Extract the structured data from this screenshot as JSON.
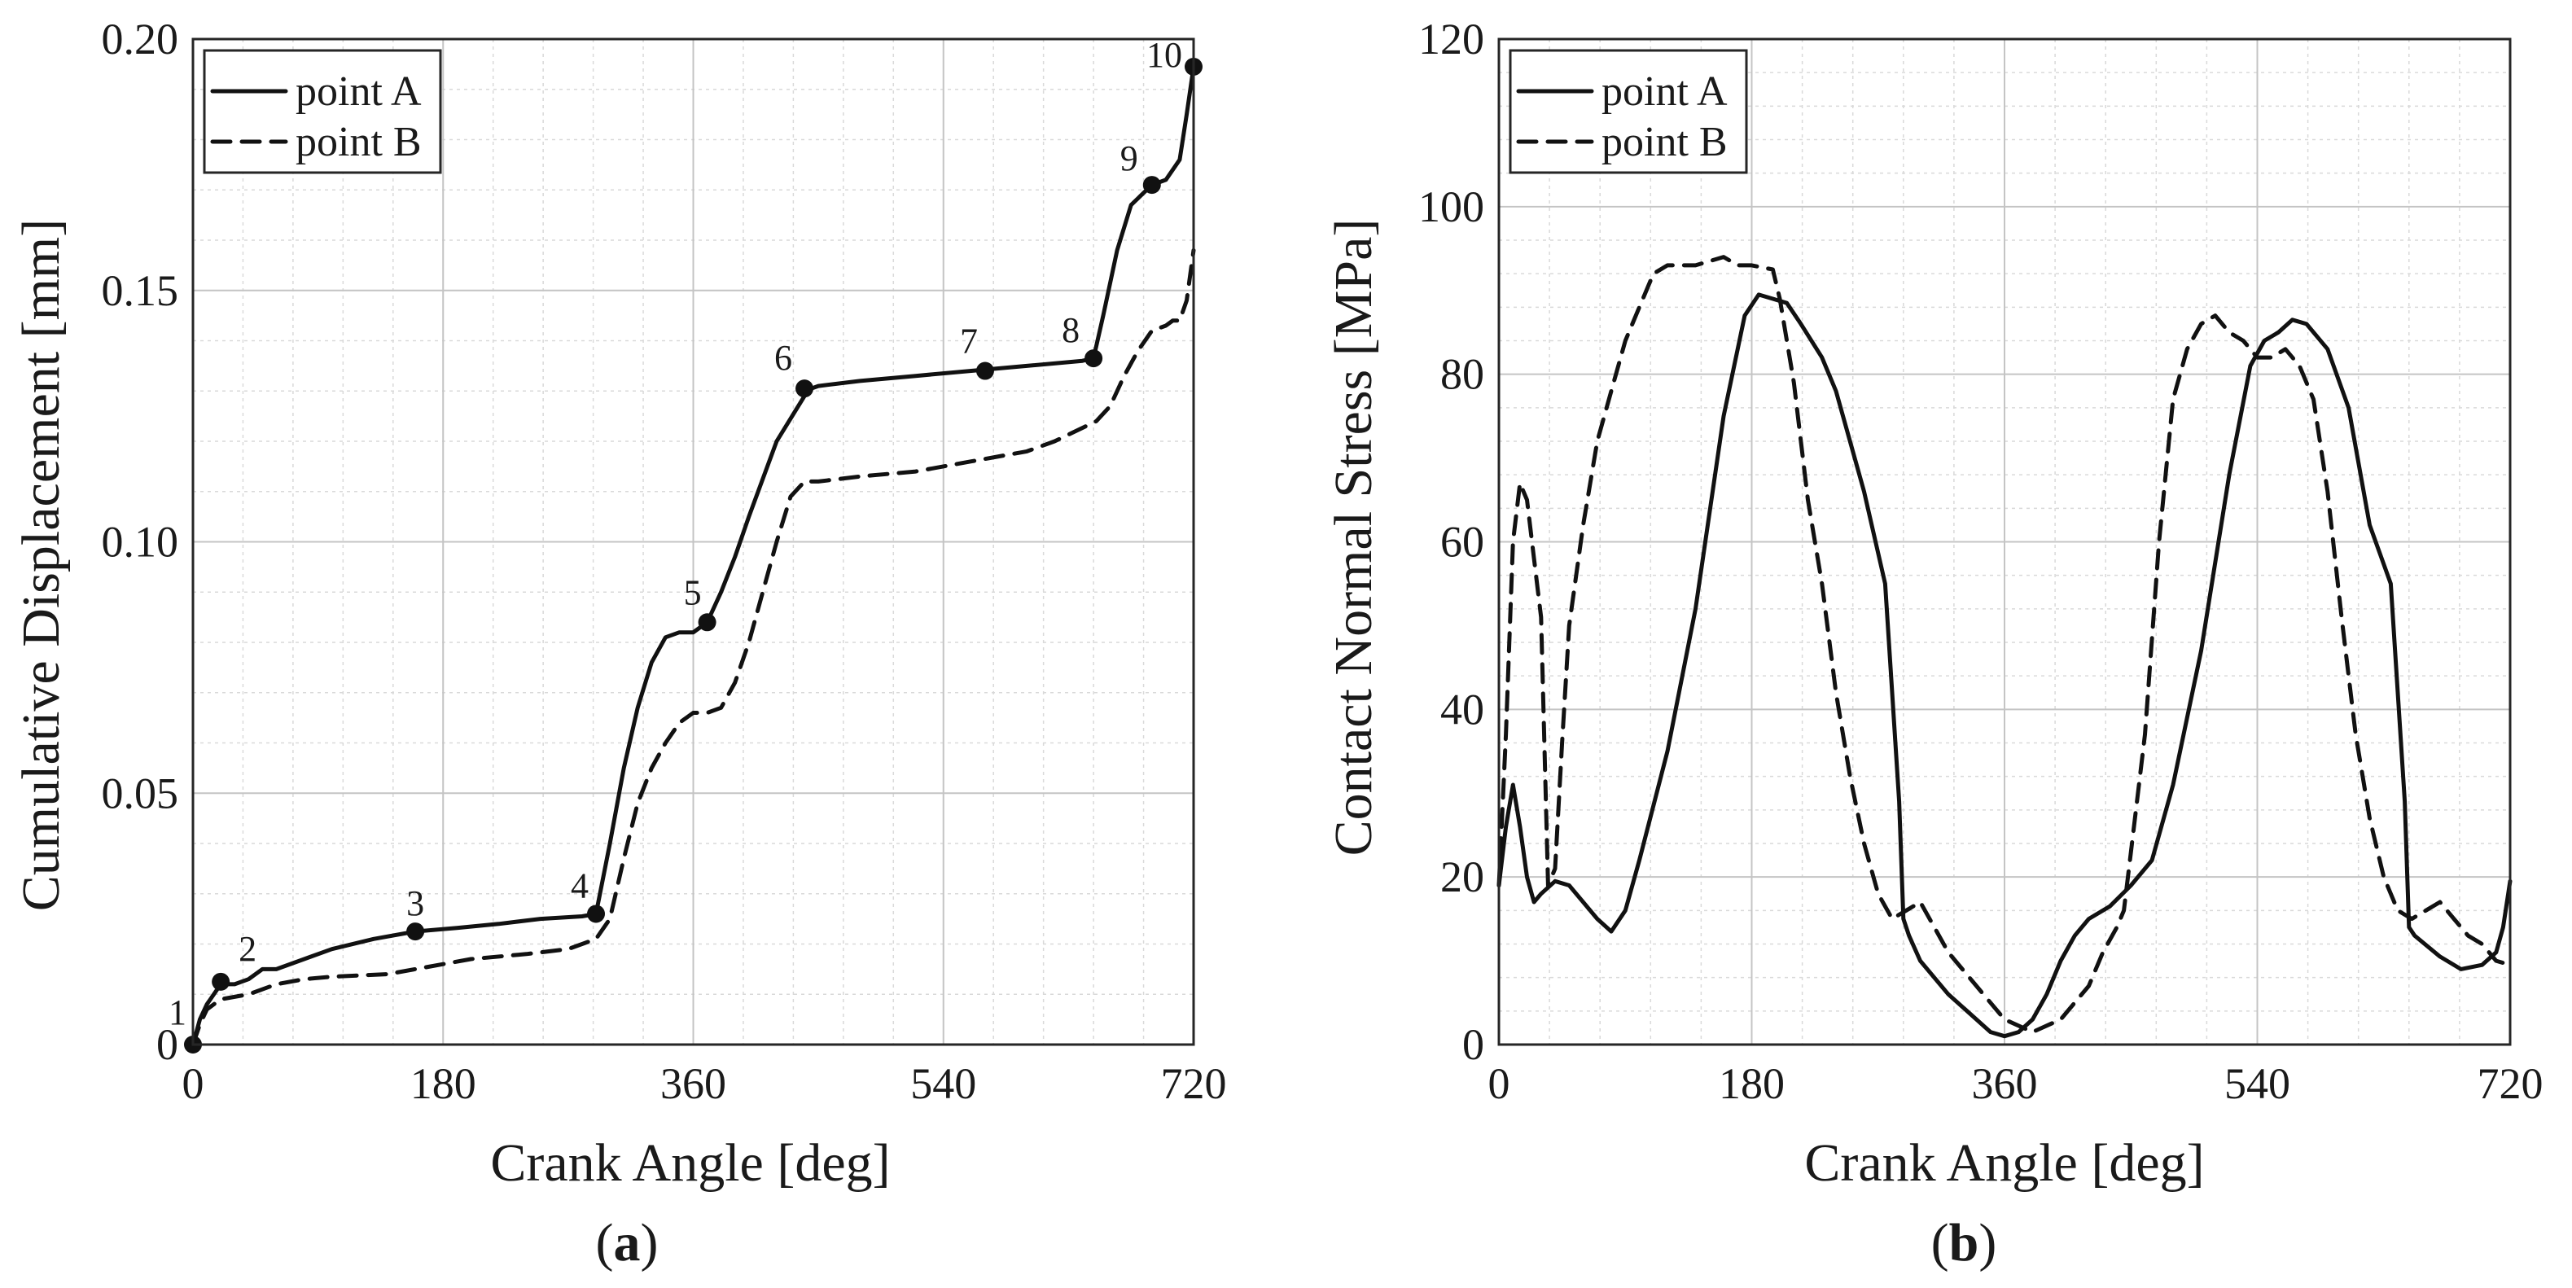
{
  "chart_data": [
    {
      "type": "line",
      "panel_label": "(a)",
      "xlabel": "Crank Angle [deg]",
      "ylabel": "Cumulative Displacement [mm]",
      "xlim": [
        0,
        720
      ],
      "ylim": [
        0,
        0.2
      ],
      "xticks": [
        0,
        180,
        360,
        540,
        720
      ],
      "yticks": [
        0,
        0.05,
        0.1,
        0.15,
        0.2
      ],
      "xtick_labels": [
        "0",
        "180",
        "360",
        "540",
        "720"
      ],
      "ytick_labels": [
        "0",
        "0.05",
        "0.10",
        "0.15",
        "0.20"
      ],
      "grid": true,
      "legend": "top-left",
      "series": [
        {
          "name": "point A",
          "style": "solid",
          "x": [
            0,
            5,
            10,
            20,
            30,
            40,
            50,
            60,
            80,
            100,
            130,
            160,
            190,
            220,
            250,
            280,
            290,
            300,
            310,
            320,
            330,
            340,
            350,
            355,
            360,
            370,
            380,
            390,
            400,
            420,
            440,
            445,
            450,
            480,
            520,
            560,
            600,
            640,
            648,
            655,
            665,
            675,
            690,
            700,
            710,
            715,
            720
          ],
          "y": [
            0,
            0.005,
            0.008,
            0.012,
            0.012,
            0.013,
            0.015,
            0.015,
            0.017,
            0.019,
            0.021,
            0.0225,
            0.0232,
            0.024,
            0.025,
            0.0255,
            0.026,
            0.04,
            0.055,
            0.067,
            0.076,
            0.081,
            0.082,
            0.082,
            0.082,
            0.084,
            0.09,
            0.097,
            0.105,
            0.12,
            0.129,
            0.1305,
            0.131,
            0.132,
            0.133,
            0.134,
            0.135,
            0.136,
            0.1365,
            0.145,
            0.158,
            0.167,
            0.171,
            0.172,
            0.176,
            0.185,
            0.1945
          ]
        },
        {
          "name": "point B",
          "style": "dashed",
          "x": [
            0,
            5,
            10,
            20,
            40,
            60,
            80,
            100,
            140,
            180,
            200,
            240,
            270,
            290,
            300,
            310,
            320,
            330,
            340,
            350,
            360,
            370,
            380,
            390,
            400,
            410,
            420,
            430,
            440,
            450,
            480,
            520,
            560,
            600,
            620,
            650,
            660,
            670,
            680,
            690,
            700,
            705,
            710,
            715,
            720
          ],
          "y": [
            0,
            0.004,
            0.007,
            0.009,
            0.01,
            0.012,
            0.013,
            0.0135,
            0.014,
            0.016,
            0.017,
            0.018,
            0.019,
            0.021,
            0.025,
            0.037,
            0.048,
            0.055,
            0.06,
            0.064,
            0.066,
            0.066,
            0.067,
            0.072,
            0.08,
            0.09,
            0.1,
            0.109,
            0.112,
            0.112,
            0.113,
            0.114,
            0.116,
            0.118,
            0.12,
            0.124,
            0.127,
            0.133,
            0.138,
            0.142,
            0.143,
            0.144,
            0.144,
            0.148,
            0.158
          ]
        }
      ],
      "markers": [
        {
          "label": "1",
          "x": 0,
          "y": 0
        },
        {
          "label": "2",
          "x": 20,
          "y": 0.0125
        },
        {
          "label": "3",
          "x": 160,
          "y": 0.0225
        },
        {
          "label": "4",
          "x": 290,
          "y": 0.026
        },
        {
          "label": "5",
          "x": 370,
          "y": 0.084
        },
        {
          "label": "6",
          "x": 440,
          "y": 0.1305
        },
        {
          "label": "7",
          "x": 570,
          "y": 0.134
        },
        {
          "label": "8",
          "x": 648,
          "y": 0.1365
        },
        {
          "label": "9",
          "x": 690,
          "y": 0.171
        },
        {
          "label": "10",
          "x": 720,
          "y": 0.1945
        }
      ]
    },
    {
      "type": "line",
      "panel_label": "(b)",
      "xlabel": "Crank Angle [deg]",
      "ylabel": "Contact Normal Stress [MPa]",
      "xlim": [
        0,
        720
      ],
      "ylim": [
        0,
        120
      ],
      "xticks": [
        0,
        180,
        360,
        540,
        720
      ],
      "yticks": [
        0,
        20,
        40,
        60,
        80,
        100,
        120
      ],
      "xtick_labels": [
        "0",
        "180",
        "360",
        "540",
        "720"
      ],
      "ytick_labels": [
        "0",
        "20",
        "40",
        "60",
        "80",
        "100",
        "120"
      ],
      "grid": true,
      "legend": "top-left",
      "series": [
        {
          "name": "point A",
          "style": "solid",
          "x": [
            0,
            5,
            10,
            15,
            20,
            25,
            30,
            40,
            50,
            60,
            70,
            80,
            90,
            100,
            120,
            140,
            160,
            175,
            185,
            195,
            205,
            215,
            230,
            240,
            260,
            275,
            285,
            288,
            292,
            300,
            320,
            340,
            350,
            360,
            370,
            380,
            390,
            400,
            410,
            420,
            435,
            450,
            465,
            480,
            500,
            520,
            535,
            545,
            555,
            565,
            575,
            590,
            605,
            620,
            635,
            645,
            648,
            652,
            670,
            685,
            700,
            710,
            715,
            720
          ],
          "y": [
            19,
            26,
            31,
            26,
            20,
            17,
            18,
            19.5,
            19,
            17,
            15,
            13.5,
            16,
            22,
            35,
            52,
            75,
            87,
            89.5,
            89,
            88.5,
            86,
            82,
            78,
            66,
            55,
            29,
            15,
            13,
            10,
            6,
            3,
            1.5,
            1,
            1.5,
            3,
            6,
            10,
            13,
            15,
            16.5,
            19,
            22,
            31,
            47,
            68,
            81,
            84,
            85,
            86.5,
            86,
            83,
            76,
            62,
            55,
            29,
            14,
            13,
            10.5,
            9,
            9.5,
            11,
            14,
            19.5
          ]
        },
        {
          "name": "point B",
          "style": "dashed",
          "x": [
            0,
            5,
            10,
            15,
            20,
            25,
            30,
            35,
            40,
            45,
            50,
            60,
            70,
            80,
            90,
            100,
            110,
            120,
            140,
            160,
            170,
            180,
            195,
            200,
            210,
            220,
            230,
            240,
            250,
            260,
            270,
            280,
            290,
            300,
            310,
            320,
            340,
            360,
            380,
            400,
            420,
            430,
            440,
            445,
            450,
            460,
            470,
            480,
            490,
            500,
            510,
            520,
            530,
            540,
            550,
            560,
            570,
            580,
            590,
            600,
            610,
            620,
            630,
            640,
            650,
            660,
            670,
            680,
            690,
            700,
            710,
            720
          ],
          "y": [
            19,
            37,
            60,
            67,
            65,
            58,
            51,
            19,
            21,
            36,
            50,
            62,
            72,
            78,
            84,
            88,
            92,
            93,
            93,
            94,
            93,
            93,
            92.5,
            89,
            79,
            65,
            55,
            42,
            32,
            24,
            18,
            15,
            16,
            17,
            14,
            11,
            7,
            3,
            1.5,
            3,
            7,
            11,
            14,
            16,
            23,
            37,
            60,
            77,
            83,
            86,
            87,
            85,
            84,
            82,
            82,
            83,
            81,
            77,
            66,
            51,
            37,
            27,
            20,
            16,
            15,
            16,
            17,
            15,
            13,
            12,
            10,
            9.5
          ]
        }
      ]
    }
  ]
}
